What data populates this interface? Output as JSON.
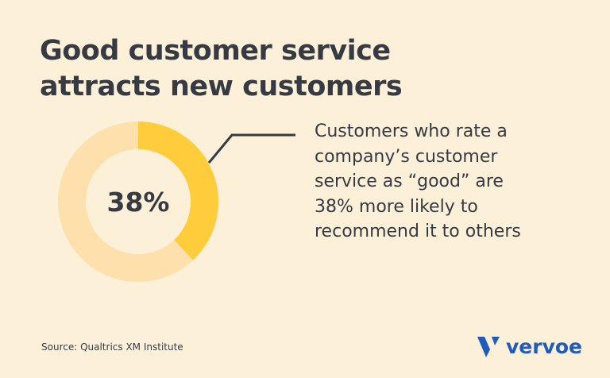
{
  "title_lines": [
    "Good customer service",
    "attracts new customers"
  ],
  "chart_data": {
    "type": "pie",
    "variant": "donut",
    "values": [
      38,
      62
    ],
    "center_label": "38%",
    "colors": [
      "#ffcd3c",
      "#fde0ac"
    ]
  },
  "description_lines": [
    "Customers who rate a",
    "company’s customer",
    "service as “good” are",
    "38% more likely to",
    "recommend it to others"
  ],
  "source": "Source: Qualtrics XM Institute",
  "logo": {
    "text": "vervoe",
    "color": "#1f5bb8"
  },
  "colors": {
    "background": "#fdf0d9",
    "text": "#363a43"
  }
}
